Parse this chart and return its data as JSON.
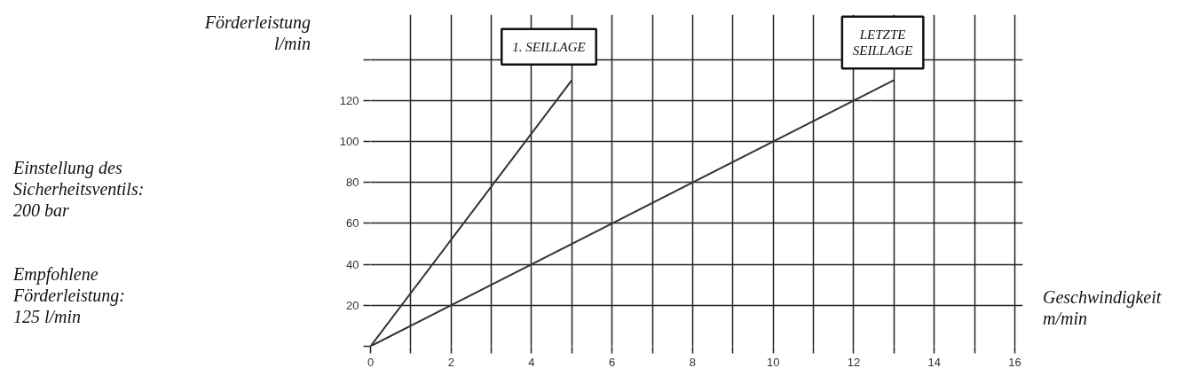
{
  "chart_data": {
    "type": "line",
    "xlabel": "Geschwindigkeit\nm/min",
    "ylabel": "Förderleistung\nl/min",
    "series": [
      {
        "name": "1. SEILLAGE",
        "color": "#333333",
        "x": [
          0,
          5
        ],
        "values": [
          0,
          130
        ]
      },
      {
        "name": "LETZTE SEILLAGE",
        "color": "#333333",
        "x": [
          0,
          13
        ],
        "values": [
          0,
          130
        ]
      }
    ],
    "xlim": [
      0,
      16.2
    ],
    "ylim": [
      0,
      162
    ],
    "xticks": [
      0,
      {
        "value": 1,
        "label": null
      },
      2,
      {
        "value": 3,
        "label": null
      },
      4,
      {
        "value": 5,
        "label": null
      },
      6,
      {
        "value": 7,
        "label": null
      },
      8,
      {
        "value": 9,
        "label": null
      },
      10,
      {
        "value": 11,
        "label": null
      },
      12,
      {
        "value": 13,
        "label": null
      },
      14,
      {
        "value": 15,
        "label": null
      },
      16
    ],
    "yticks": [
      {
        "value": 0,
        "label": null
      },
      20,
      40,
      60,
      80,
      100,
      120,
      {
        "value": 140,
        "label": null
      }
    ],
    "grid": true,
    "marker": "none",
    "line_style": "solid",
    "annotations": [
      "Einstellung des\nSicherheitsventils:\n200 bar",
      "Empfohlene\nFörderleistung:\n125 l/min"
    ]
  }
}
